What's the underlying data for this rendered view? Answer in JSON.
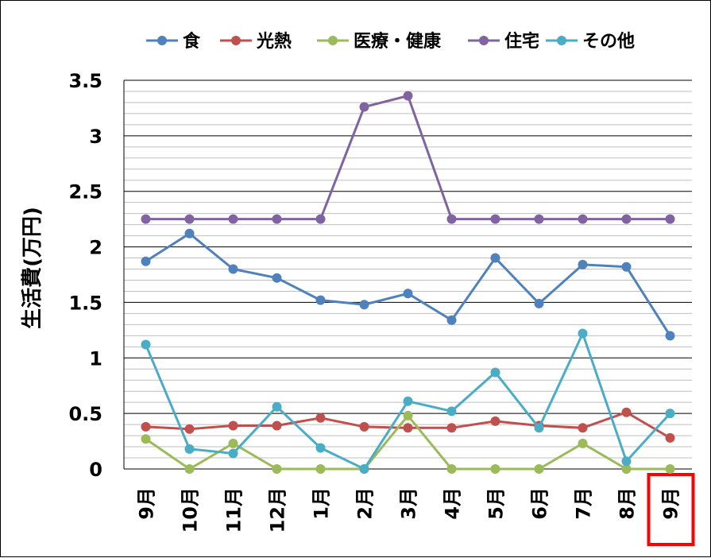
{
  "chart_data": {
    "type": "line",
    "title": "",
    "xlabel": "",
    "ylabel": "生活費(万円)",
    "ylim": [
      0,
      3.5
    ],
    "yticks": [
      "0",
      "0.5",
      "1",
      "1.5",
      "2",
      "2.5",
      "3",
      "3.5"
    ],
    "categories": [
      "9月",
      "10月",
      "11月",
      "12月",
      "1月",
      "2月",
      "3月",
      "4月",
      "5月",
      "6月",
      "7月",
      "8月",
      "9月"
    ],
    "highlighted_category_index": 12,
    "highlight_color": "#ff0000",
    "legend_position": "top",
    "series": [
      {
        "name": "食",
        "color": "#4f81bd",
        "values": [
          1.87,
          2.12,
          1.8,
          1.72,
          1.52,
          1.48,
          1.58,
          1.34,
          1.9,
          1.49,
          1.84,
          1.82,
          1.2
        ]
      },
      {
        "name": "光熱",
        "color": "#c0504d",
        "values": [
          0.38,
          0.36,
          0.39,
          0.39,
          0.46,
          0.38,
          0.37,
          0.37,
          0.43,
          0.39,
          0.37,
          0.51,
          0.28
        ]
      },
      {
        "name": "医療・健康",
        "color": "#9bbb59",
        "values": [
          0.27,
          0,
          0.23,
          0,
          0,
          0,
          0.48,
          0,
          0,
          0,
          0.23,
          0,
          0
        ]
      },
      {
        "name": "住宅",
        "color": "#8064a2",
        "values": [
          2.25,
          2.25,
          2.25,
          2.25,
          2.25,
          3.26,
          3.36,
          2.25,
          2.25,
          2.25,
          2.25,
          2.25,
          2.25
        ]
      },
      {
        "name": "その他",
        "color": "#4bacc6",
        "values": [
          1.12,
          0.18,
          0.14,
          0.56,
          0.19,
          0,
          0.61,
          0.52,
          0.87,
          0.37,
          1.22,
          0.07,
          0.5
        ]
      }
    ]
  }
}
